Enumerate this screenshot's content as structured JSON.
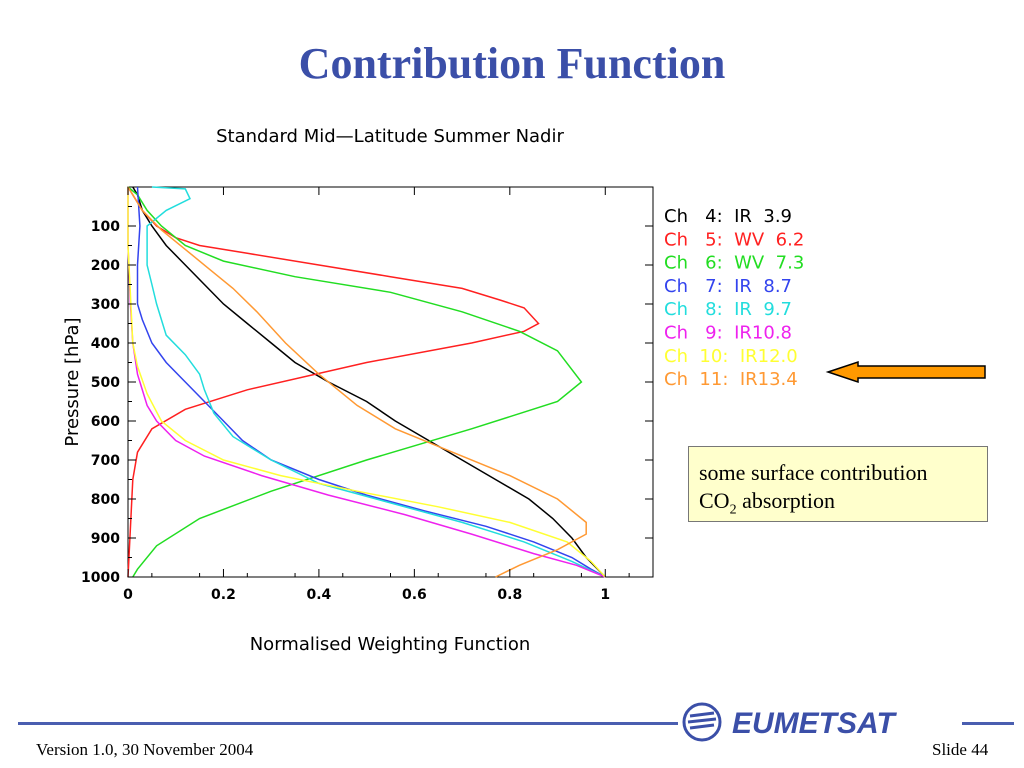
{
  "slide": {
    "title": "Contribution Function",
    "callout_line1": "some surface contribution",
    "callout_line2_pre": "CO",
    "callout_line2_sub": "2",
    "callout_line2_post": " absorption",
    "footer_left": "Version 1.0, 30 November 2004",
    "footer_right": "Slide 44",
    "logo_text": "EUMETSAT",
    "arrow_color": "#ff9900",
    "accent_color": "#3b4fa8"
  },
  "chart_data": {
    "type": "line",
    "title": "Standard Mid—Latitude Summer Nadir",
    "xlabel": "Normalised Weighting Function",
    "ylabel": "Pressure [hPa]",
    "xlim": [
      0,
      1.1
    ],
    "ylim": [
      1000,
      0
    ],
    "x_ticks": [
      0,
      0.2,
      0.4,
      0.6,
      0.8,
      1
    ],
    "x_tick_labels": [
      "0",
      "0.2",
      "0.4",
      "0.6",
      "0.8",
      "1"
    ],
    "y_ticks": [
      100,
      200,
      300,
      400,
      500,
      600,
      700,
      800,
      900,
      1000
    ],
    "y_tick_labels": [
      "100",
      "200",
      "300",
      "400",
      "500",
      "600",
      "700",
      "800",
      "900",
      "1000"
    ],
    "grid": false,
    "legend_position": "right",
    "series": [
      {
        "name": "Ch   4:  IR  3.9",
        "color": "#000000",
        "points": [
          [
            0.01,
            0
          ],
          [
            0.02,
            20
          ],
          [
            0.03,
            60
          ],
          [
            0.05,
            100
          ],
          [
            0.08,
            150
          ],
          [
            0.12,
            200
          ],
          [
            0.16,
            250
          ],
          [
            0.2,
            300
          ],
          [
            0.25,
            350
          ],
          [
            0.3,
            400
          ],
          [
            0.35,
            450
          ],
          [
            0.42,
            500
          ],
          [
            0.5,
            550
          ],
          [
            0.56,
            600
          ],
          [
            0.63,
            650
          ],
          [
            0.7,
            700
          ],
          [
            0.77,
            750
          ],
          [
            0.84,
            800
          ],
          [
            0.89,
            850
          ],
          [
            0.93,
            900
          ],
          [
            0.96,
            950
          ],
          [
            1.0,
            1000
          ]
        ]
      },
      {
        "name": "Ch   5:  WV  6.2",
        "color": "#ff2020",
        "points": [
          [
            0.0,
            0
          ],
          [
            0.01,
            20
          ],
          [
            0.03,
            60
          ],
          [
            0.06,
            100
          ],
          [
            0.1,
            130
          ],
          [
            0.15,
            150
          ],
          [
            0.25,
            170
          ],
          [
            0.4,
            200
          ],
          [
            0.55,
            230
          ],
          [
            0.7,
            260
          ],
          [
            0.78,
            290
          ],
          [
            0.83,
            310
          ],
          [
            0.86,
            350
          ],
          [
            0.83,
            370
          ],
          [
            0.72,
            400
          ],
          [
            0.5,
            450
          ],
          [
            0.25,
            520
          ],
          [
            0.12,
            570
          ],
          [
            0.05,
            620
          ],
          [
            0.02,
            680
          ],
          [
            0.01,
            750
          ],
          [
            0.0,
            1000
          ]
        ]
      },
      {
        "name": "Ch   6:  WV  7.3",
        "color": "#22dd22",
        "points": [
          [
            0.0,
            0
          ],
          [
            0.02,
            20
          ],
          [
            0.04,
            60
          ],
          [
            0.07,
            100
          ],
          [
            0.12,
            150
          ],
          [
            0.2,
            190
          ],
          [
            0.35,
            230
          ],
          [
            0.55,
            270
          ],
          [
            0.7,
            320
          ],
          [
            0.82,
            370
          ],
          [
            0.9,
            420
          ],
          [
            0.95,
            500
          ],
          [
            0.9,
            550
          ],
          [
            0.72,
            620
          ],
          [
            0.5,
            700
          ],
          [
            0.3,
            780
          ],
          [
            0.15,
            850
          ],
          [
            0.06,
            920
          ],
          [
            0.02,
            980
          ],
          [
            0.01,
            1000
          ]
        ]
      },
      {
        "name": "Ch   7:  IR  8.7",
        "color": "#3344ee",
        "points": [
          [
            0.02,
            0
          ],
          [
            0.025,
            100
          ],
          [
            0.02,
            200
          ],
          [
            0.02,
            300
          ],
          [
            0.03,
            340
          ],
          [
            0.05,
            400
          ],
          [
            0.08,
            450
          ],
          [
            0.12,
            500
          ],
          [
            0.16,
            550
          ],
          [
            0.2,
            600
          ],
          [
            0.24,
            650
          ],
          [
            0.3,
            700
          ],
          [
            0.4,
            750
          ],
          [
            0.5,
            790
          ],
          [
            0.62,
            830
          ],
          [
            0.75,
            870
          ],
          [
            0.85,
            910
          ],
          [
            0.93,
            950
          ],
          [
            0.97,
            980
          ],
          [
            1.0,
            1000
          ]
        ]
      },
      {
        "name": "Ch   8:  IR  9.7",
        "color": "#22dddd",
        "points": [
          [
            0.05,
            0
          ],
          [
            0.12,
            5
          ],
          [
            0.13,
            30
          ],
          [
            0.08,
            60
          ],
          [
            0.04,
            100
          ],
          [
            0.04,
            150
          ],
          [
            0.04,
            200
          ],
          [
            0.05,
            250
          ],
          [
            0.06,
            300
          ],
          [
            0.08,
            380
          ],
          [
            0.12,
            430
          ],
          [
            0.15,
            480
          ],
          [
            0.16,
            520
          ],
          [
            0.18,
            580
          ],
          [
            0.22,
            640
          ],
          [
            0.3,
            700
          ],
          [
            0.4,
            760
          ],
          [
            0.55,
            810
          ],
          [
            0.7,
            860
          ],
          [
            0.83,
            910
          ],
          [
            0.93,
            960
          ],
          [
            1.0,
            1000
          ]
        ]
      },
      {
        "name": "Ch   9:  IR10.8",
        "color": "#ee22ee",
        "points": [
          [
            0.0,
            0
          ],
          [
            0.0,
            150
          ],
          [
            0.005,
            300
          ],
          [
            0.01,
            400
          ],
          [
            0.02,
            480
          ],
          [
            0.04,
            560
          ],
          [
            0.06,
            600
          ],
          [
            0.1,
            650
          ],
          [
            0.16,
            690
          ],
          [
            0.28,
            740
          ],
          [
            0.42,
            790
          ],
          [
            0.58,
            840
          ],
          [
            0.72,
            890
          ],
          [
            0.85,
            940
          ],
          [
            0.94,
            970
          ],
          [
            1.0,
            1000
          ]
        ]
      },
      {
        "name": "Ch  10:  IR12.0",
        "color": "#ffff33",
        "points": [
          [
            0.0,
            0
          ],
          [
            0.0,
            150
          ],
          [
            0.01,
            400
          ],
          [
            0.02,
            460
          ],
          [
            0.04,
            530
          ],
          [
            0.07,
            600
          ],
          [
            0.12,
            650
          ],
          [
            0.2,
            700
          ],
          [
            0.32,
            740
          ],
          [
            0.48,
            780
          ],
          [
            0.65,
            820
          ],
          [
            0.8,
            860
          ],
          [
            0.92,
            910
          ],
          [
            0.97,
            960
          ],
          [
            1.0,
            1000
          ]
        ]
      },
      {
        "name": "Ch  11:  IR13.4",
        "color": "#ff9933",
        "points": [
          [
            0.0,
            0
          ],
          [
            0.03,
            60
          ],
          [
            0.07,
            110
          ],
          [
            0.12,
            160
          ],
          [
            0.17,
            210
          ],
          [
            0.22,
            260
          ],
          [
            0.27,
            320
          ],
          [
            0.33,
            400
          ],
          [
            0.4,
            480
          ],
          [
            0.48,
            560
          ],
          [
            0.56,
            620
          ],
          [
            0.68,
            680
          ],
          [
            0.8,
            740
          ],
          [
            0.9,
            800
          ],
          [
            0.96,
            860
          ],
          [
            0.96,
            890
          ],
          [
            0.9,
            930
          ],
          [
            0.82,
            970
          ],
          [
            0.77,
            1000
          ]
        ]
      }
    ]
  }
}
